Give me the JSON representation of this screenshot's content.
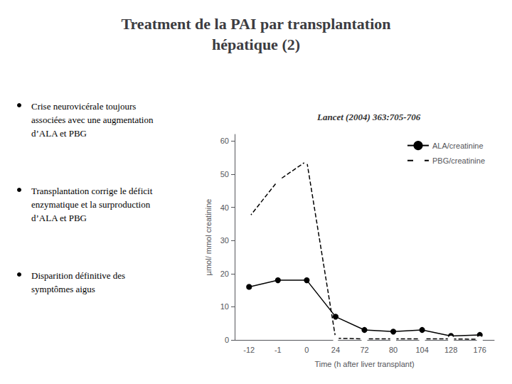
{
  "chart_data": {
    "type": "line",
    "title": "Treatment de la PAI par transplantation\nhépatique (2)",
    "annotations": [
      "Crise neurovicérale toujours\nassociées avec une augmentation\nd’ALA et PBG",
      "Transplantation corrige le déficit\nenzymatique et la surproduction\nd’ALA et PBG",
      "Disparition définitive des\nsymptômes aigus",
      "Lancet (2004) 363:705-706"
    ],
    "x_label": "Time (h after liver transplant)",
    "y_label": "µmol/ mmol creatinine",
    "categories": [
      "-12",
      "-1",
      "0",
      "24",
      "72",
      "80",
      "104",
      "128",
      "176"
    ],
    "series": [
      {
        "name": "ALA/creatinine",
        "color": "#000000",
        "marker": "filled_circle",
        "line_style": "solid",
        "values": [
          16,
          18,
          18,
          7,
          3,
          2.5,
          3,
          1.2,
          1.5
        ]
      },
      {
        "name": "PBG/creatinine",
        "color": "#000000",
        "marker": "open_circle",
        "line_style": "dashed",
        "values": [
          37,
          48,
          54,
          0.5,
          0.3,
          0.3,
          0.3,
          0.3,
          0.2
        ]
      }
    ],
    "ylim": [
      0,
      62
    ],
    "yticks": [
      0,
      10,
      20,
      30,
      40,
      50,
      60
    ],
    "grid": false,
    "legend": "upper right"
  }
}
